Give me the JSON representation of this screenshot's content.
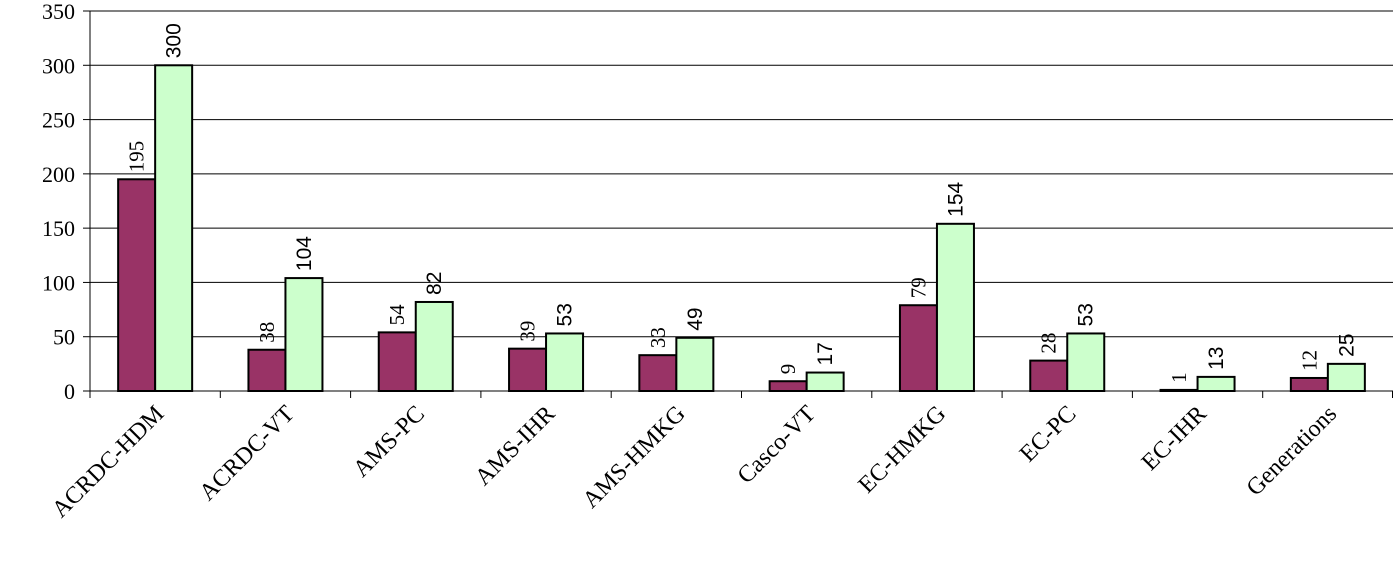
{
  "chart_data": {
    "type": "bar",
    "categories": [
      "ACRDC-HDM",
      "ACRDC-VT",
      "AMS-PC",
      "AMS-IHR",
      "AMS-HMKG",
      "Casco-VT",
      "EC-HMKG",
      "EC-PC",
      "EC-IHR",
      "Generations"
    ],
    "series": [
      {
        "values": [
          195,
          38,
          54,
          39,
          33,
          9,
          79,
          28,
          1,
          12
        ],
        "color": "#993366"
      },
      {
        "values": [
          300,
          104,
          82,
          53,
          49,
          17,
          154,
          53,
          13,
          25
        ],
        "color": "#CCFFCC"
      }
    ],
    "y_ticks": [
      "0",
      "50",
      "100",
      "150",
      "200",
      "250",
      "300",
      "350"
    ],
    "ylim": [
      0,
      350
    ],
    "grid": true,
    "legend": "none",
    "title": "",
    "xlabel": "",
    "ylabel": ""
  }
}
